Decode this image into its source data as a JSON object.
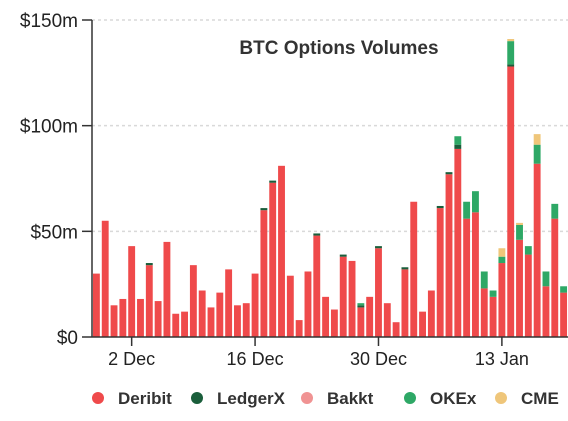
{
  "chart_data": {
    "type": "bar",
    "stacked": true,
    "title": "BTC Options Volumes",
    "xlabel": "",
    "ylabel": "",
    "ylim": [
      0,
      150
    ],
    "y_unit": "m",
    "y_ticks": [
      {
        "value": 0,
        "label": "$0"
      },
      {
        "value": 50,
        "label": "$50m"
      },
      {
        "value": 100,
        "label": "$100m"
      },
      {
        "value": 150,
        "label": "$150m"
      }
    ],
    "x_ticks": [
      {
        "index": 4,
        "label": "2 Dec"
      },
      {
        "index": 18,
        "label": "16 Dec"
      },
      {
        "index": 32,
        "label": "30 Dec"
      },
      {
        "index": 46,
        "label": "13 Jan"
      }
    ],
    "grid": true,
    "legend_position": "bottom",
    "colors": {
      "Deribit": "#ef4a4b",
      "LedgerX": "#1a5e3b",
      "Bakkt": "#f09393",
      "OKEx": "#2ea866",
      "CME": "#efc67a"
    },
    "series": [
      {
        "name": "Deribit",
        "values": [
          30,
          55,
          15,
          18,
          43,
          18,
          34,
          17,
          45,
          11,
          12,
          34,
          22,
          14,
          21,
          32,
          15,
          16,
          30,
          60,
          73,
          81,
          29,
          8,
          31,
          48,
          19,
          13,
          38,
          36,
          14,
          19,
          42,
          16,
          7,
          32,
          64,
          12,
          22,
          61,
          77,
          89,
          56,
          59,
          23,
          19,
          35,
          128,
          46,
          39,
          82,
          24,
          56,
          21
        ]
      },
      {
        "name": "LedgerX",
        "values": [
          0,
          0,
          0,
          0,
          0,
          0,
          1,
          0,
          0,
          0,
          0,
          0,
          0,
          0,
          0,
          0,
          0,
          0,
          0,
          1,
          1,
          0,
          0,
          0,
          0,
          1,
          0,
          0,
          1,
          0,
          1,
          0,
          1,
          0,
          0,
          1,
          0,
          0,
          0,
          1,
          1,
          2,
          0,
          0,
          0,
          0,
          0,
          1,
          0,
          0,
          0,
          0,
          0,
          0
        ]
      },
      {
        "name": "Bakkt",
        "values": [
          0,
          0,
          0,
          0,
          0,
          0,
          0,
          0,
          0,
          0,
          0,
          0,
          0,
          0,
          0,
          0,
          0,
          0,
          0,
          0,
          0,
          0,
          0,
          0,
          0,
          0,
          0,
          0,
          0,
          0,
          0,
          0,
          0,
          0,
          0,
          0,
          0,
          0,
          0,
          0,
          0,
          0,
          0,
          0,
          0,
          0,
          0,
          0,
          0,
          0,
          0,
          0,
          0,
          0
        ]
      },
      {
        "name": "OKEx",
        "values": [
          0,
          0,
          0,
          0,
          0,
          0,
          0,
          0,
          0,
          0,
          0,
          0,
          0,
          0,
          0,
          0,
          0,
          0,
          0,
          0,
          0,
          0,
          0,
          0,
          0,
          0,
          0,
          0,
          0,
          0,
          1,
          0,
          0,
          0,
          0,
          0,
          0,
          0,
          0,
          0,
          0,
          4,
          8,
          10,
          8,
          3,
          3,
          11,
          7,
          4,
          9,
          7,
          7,
          3
        ]
      },
      {
        "name": "CME",
        "values": [
          0,
          0,
          0,
          0,
          0,
          0,
          0,
          0,
          0,
          0,
          0,
          0,
          0,
          0,
          0,
          0,
          0,
          0,
          0,
          0,
          0,
          0,
          0,
          0,
          0,
          0,
          0,
          0,
          0,
          0,
          0,
          0,
          0,
          0,
          0,
          0,
          0,
          0,
          0,
          0,
          0,
          0,
          0,
          0,
          0,
          0,
          4,
          1,
          1,
          0,
          5,
          0,
          0,
          0
        ]
      }
    ]
  }
}
